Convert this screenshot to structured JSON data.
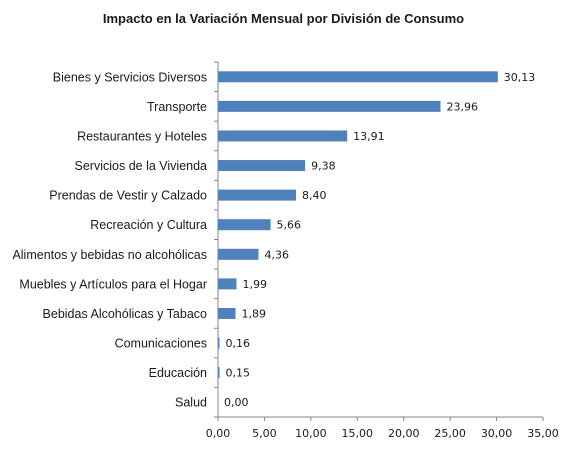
{
  "chart_data": {
    "type": "bar",
    "orientation": "horizontal",
    "title": "Impacto en la Variación Mensual por División de Consumo",
    "xlabel": "",
    "ylabel": "",
    "categories": [
      "Bienes y Servicios Diversos",
      "Transporte",
      "Restaurantes y Hoteles",
      "Servicios de la Vivienda",
      "Prendas de Vestir y Calzado",
      "Recreación y Cultura",
      "Alimentos y bebidas no alcohólicas",
      "Muebles y Artículos para el Hogar",
      "Bebidas Alcohólicas y Tabaco",
      "Comunicaciones",
      "Educación",
      "Salud"
    ],
    "values": [
      30.13,
      23.96,
      13.91,
      9.38,
      8.4,
      5.66,
      4.36,
      1.99,
      1.89,
      0.16,
      0.15,
      0.0
    ],
    "value_labels": [
      "30,13",
      "23,96",
      "13,91",
      "9,38",
      "8,40",
      "5,66",
      "4,36",
      "1,99",
      "1,89",
      "0,16",
      "0,15",
      "0,00"
    ],
    "xlim": [
      0,
      35
    ],
    "ticks": [
      0,
      5,
      10,
      15,
      20,
      25,
      30,
      35
    ],
    "tick_labels": [
      "0,00",
      "5,00",
      "10,00",
      "15,00",
      "20,00",
      "25,00",
      "30,00",
      "35,00"
    ],
    "grid": false,
    "legend": "none",
    "bar_color": "#4f81bd",
    "axis_color": "#868686"
  }
}
